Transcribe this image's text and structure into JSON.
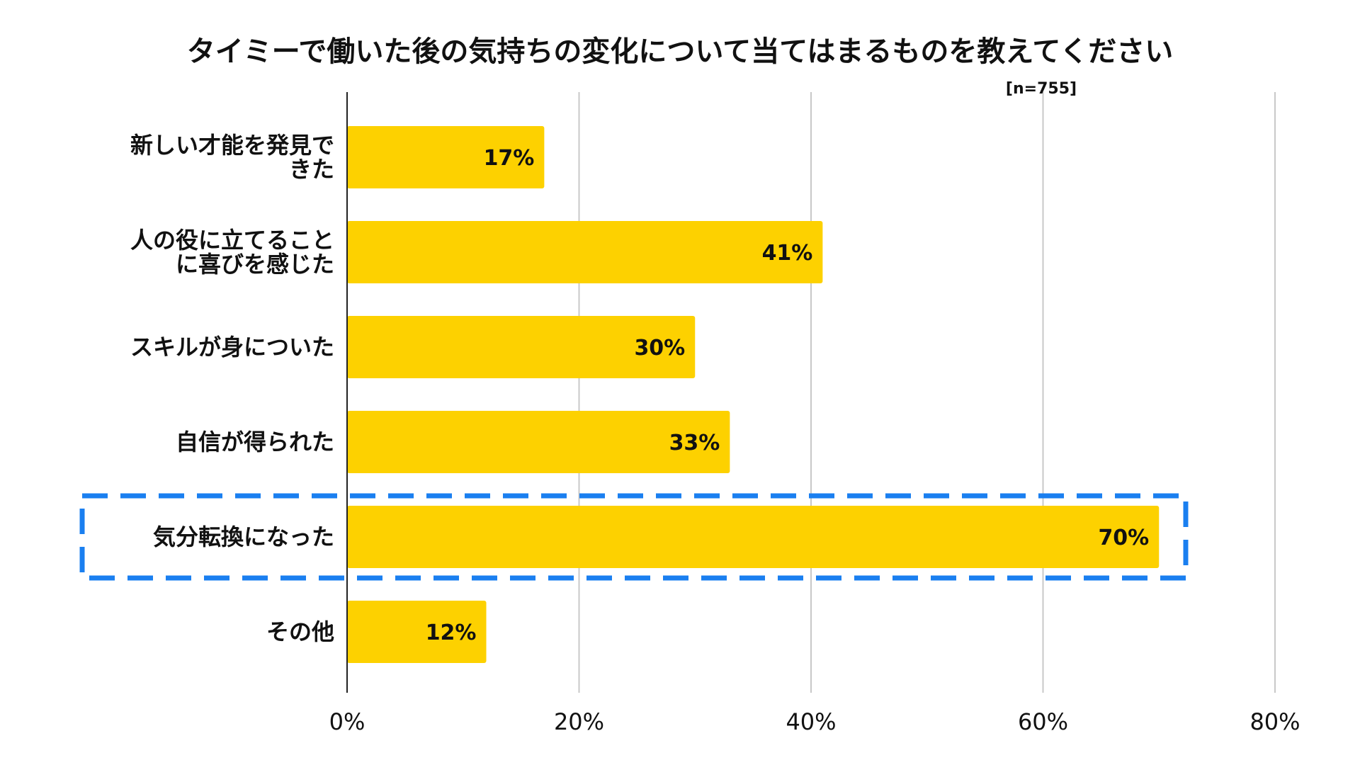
{
  "chart_data": {
    "type": "bar",
    "orientation": "horizontal",
    "title": "タイミーで働いた後の気持ちの変化について当てはまるものを教えてください",
    "note": "[n=755]",
    "categories": [
      [
        "新しい才能を発見で",
        "きた"
      ],
      [
        "人の役に立てること",
        "に喜びを感じた"
      ],
      [
        "スキルが身についた"
      ],
      [
        "自信が得られた"
      ],
      [
        "気分転換になった"
      ],
      [
        "その他"
      ]
    ],
    "values": [
      17,
      41,
      30,
      33,
      70,
      12
    ],
    "value_labels": [
      "17%",
      "41%",
      "30%",
      "33%",
      "70%",
      "12%"
    ],
    "xlim": [
      0,
      80
    ],
    "xticks": [
      "0%",
      "20%",
      "40%",
      "60%",
      "80%"
    ],
    "grid": true,
    "highlight_index": 4,
    "colors": {
      "bar": "#FDD100",
      "highlight_border": "#1A7FF0",
      "grid": "#C8C8C8",
      "axis": "#222222"
    }
  }
}
